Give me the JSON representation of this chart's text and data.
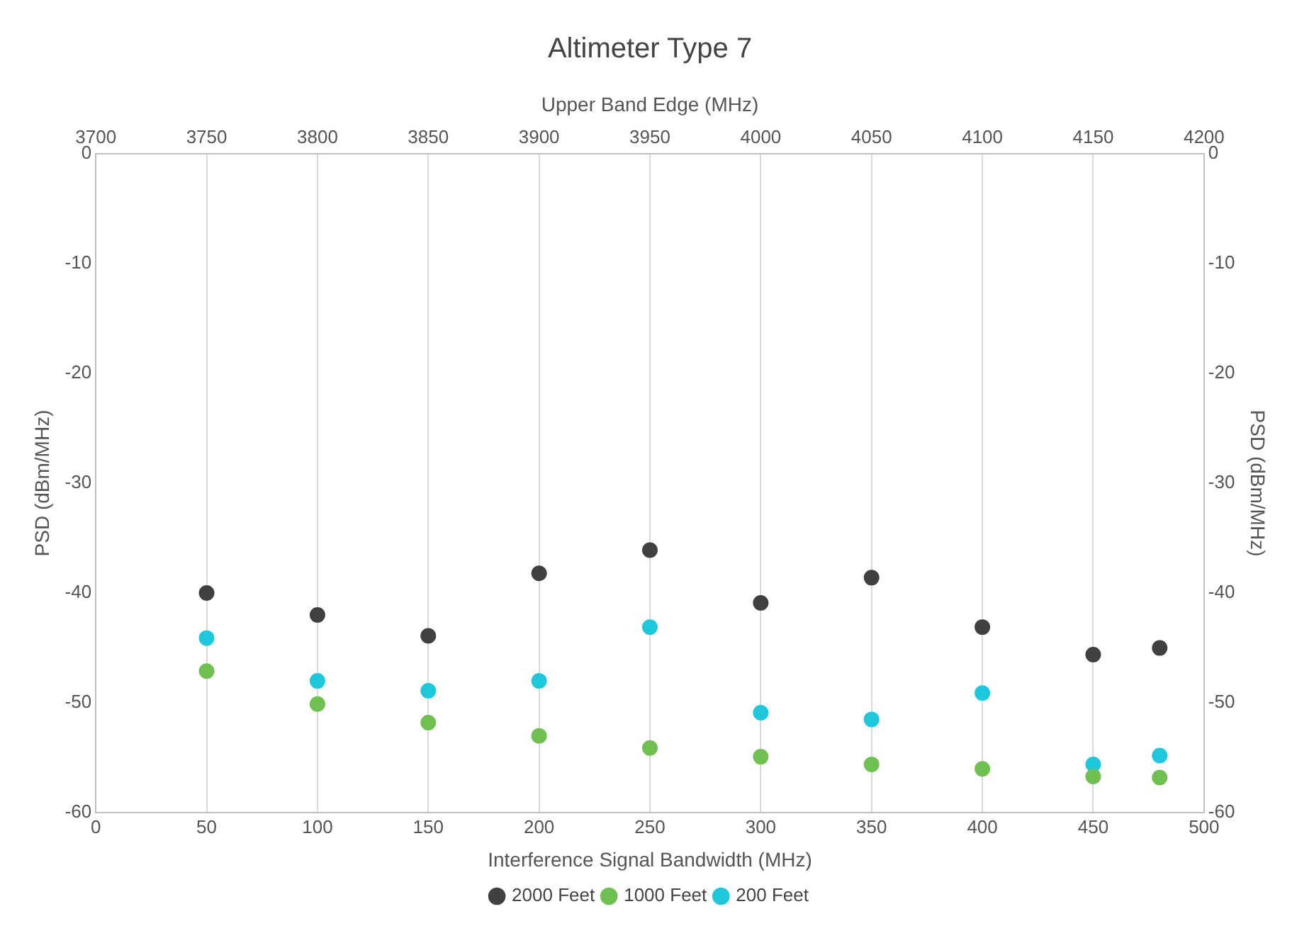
{
  "chart_data": {
    "type": "scatter",
    "title": "Altimeter Type 7",
    "xlabel": "Interference Signal Bandwidth (MHz)",
    "x2label": "Upper Band Edge (MHz)",
    "ylabel": "PSD (dBm/MHz)",
    "y2label": "PSD (dBm/MHz)",
    "x": [
      50,
      100,
      150,
      200,
      250,
      300,
      350,
      400,
      450,
      480
    ],
    "series": [
      {
        "name": "2000 Feet",
        "color": "#404040",
        "values": [
          -40,
          -42,
          -43.9,
          -38.2,
          -36.1,
          -40.9,
          -38.6,
          -43.1,
          -45.6,
          -45
        ]
      },
      {
        "name": "1000 Feet",
        "color": "#70c050",
        "values": [
          -47.1,
          -50.1,
          -51.8,
          -53,
          -54.1,
          -54.9,
          -55.6,
          -56,
          -56.7,
          -56.8
        ]
      },
      {
        "name": "200 Feet",
        "color": "#1ec8dc",
        "values": [
          -44.1,
          -48,
          -48.9,
          -48,
          -43.1,
          -50.9,
          -51.5,
          -49.1,
          -55.6,
          -54.8
        ]
      }
    ],
    "xlim": [
      0,
      500
    ],
    "xticks": [
      0,
      50,
      100,
      150,
      200,
      250,
      300,
      350,
      400,
      450,
      500
    ],
    "x2lim": [
      3700,
      4200
    ],
    "x2ticks": [
      3700,
      3750,
      3800,
      3850,
      3900,
      3950,
      4000,
      4050,
      4100,
      4150,
      4200
    ],
    "ylim": [
      -60,
      0
    ],
    "yticks": [
      -60,
      -50,
      -40,
      -30,
      -20,
      -10,
      0
    ],
    "y2lim": [
      -60,
      0
    ],
    "y2ticks": [
      -60,
      -50,
      -40,
      -30,
      -20,
      -10,
      0
    ],
    "grid": "x",
    "legend": "bottom",
    "marker": "circle"
  }
}
